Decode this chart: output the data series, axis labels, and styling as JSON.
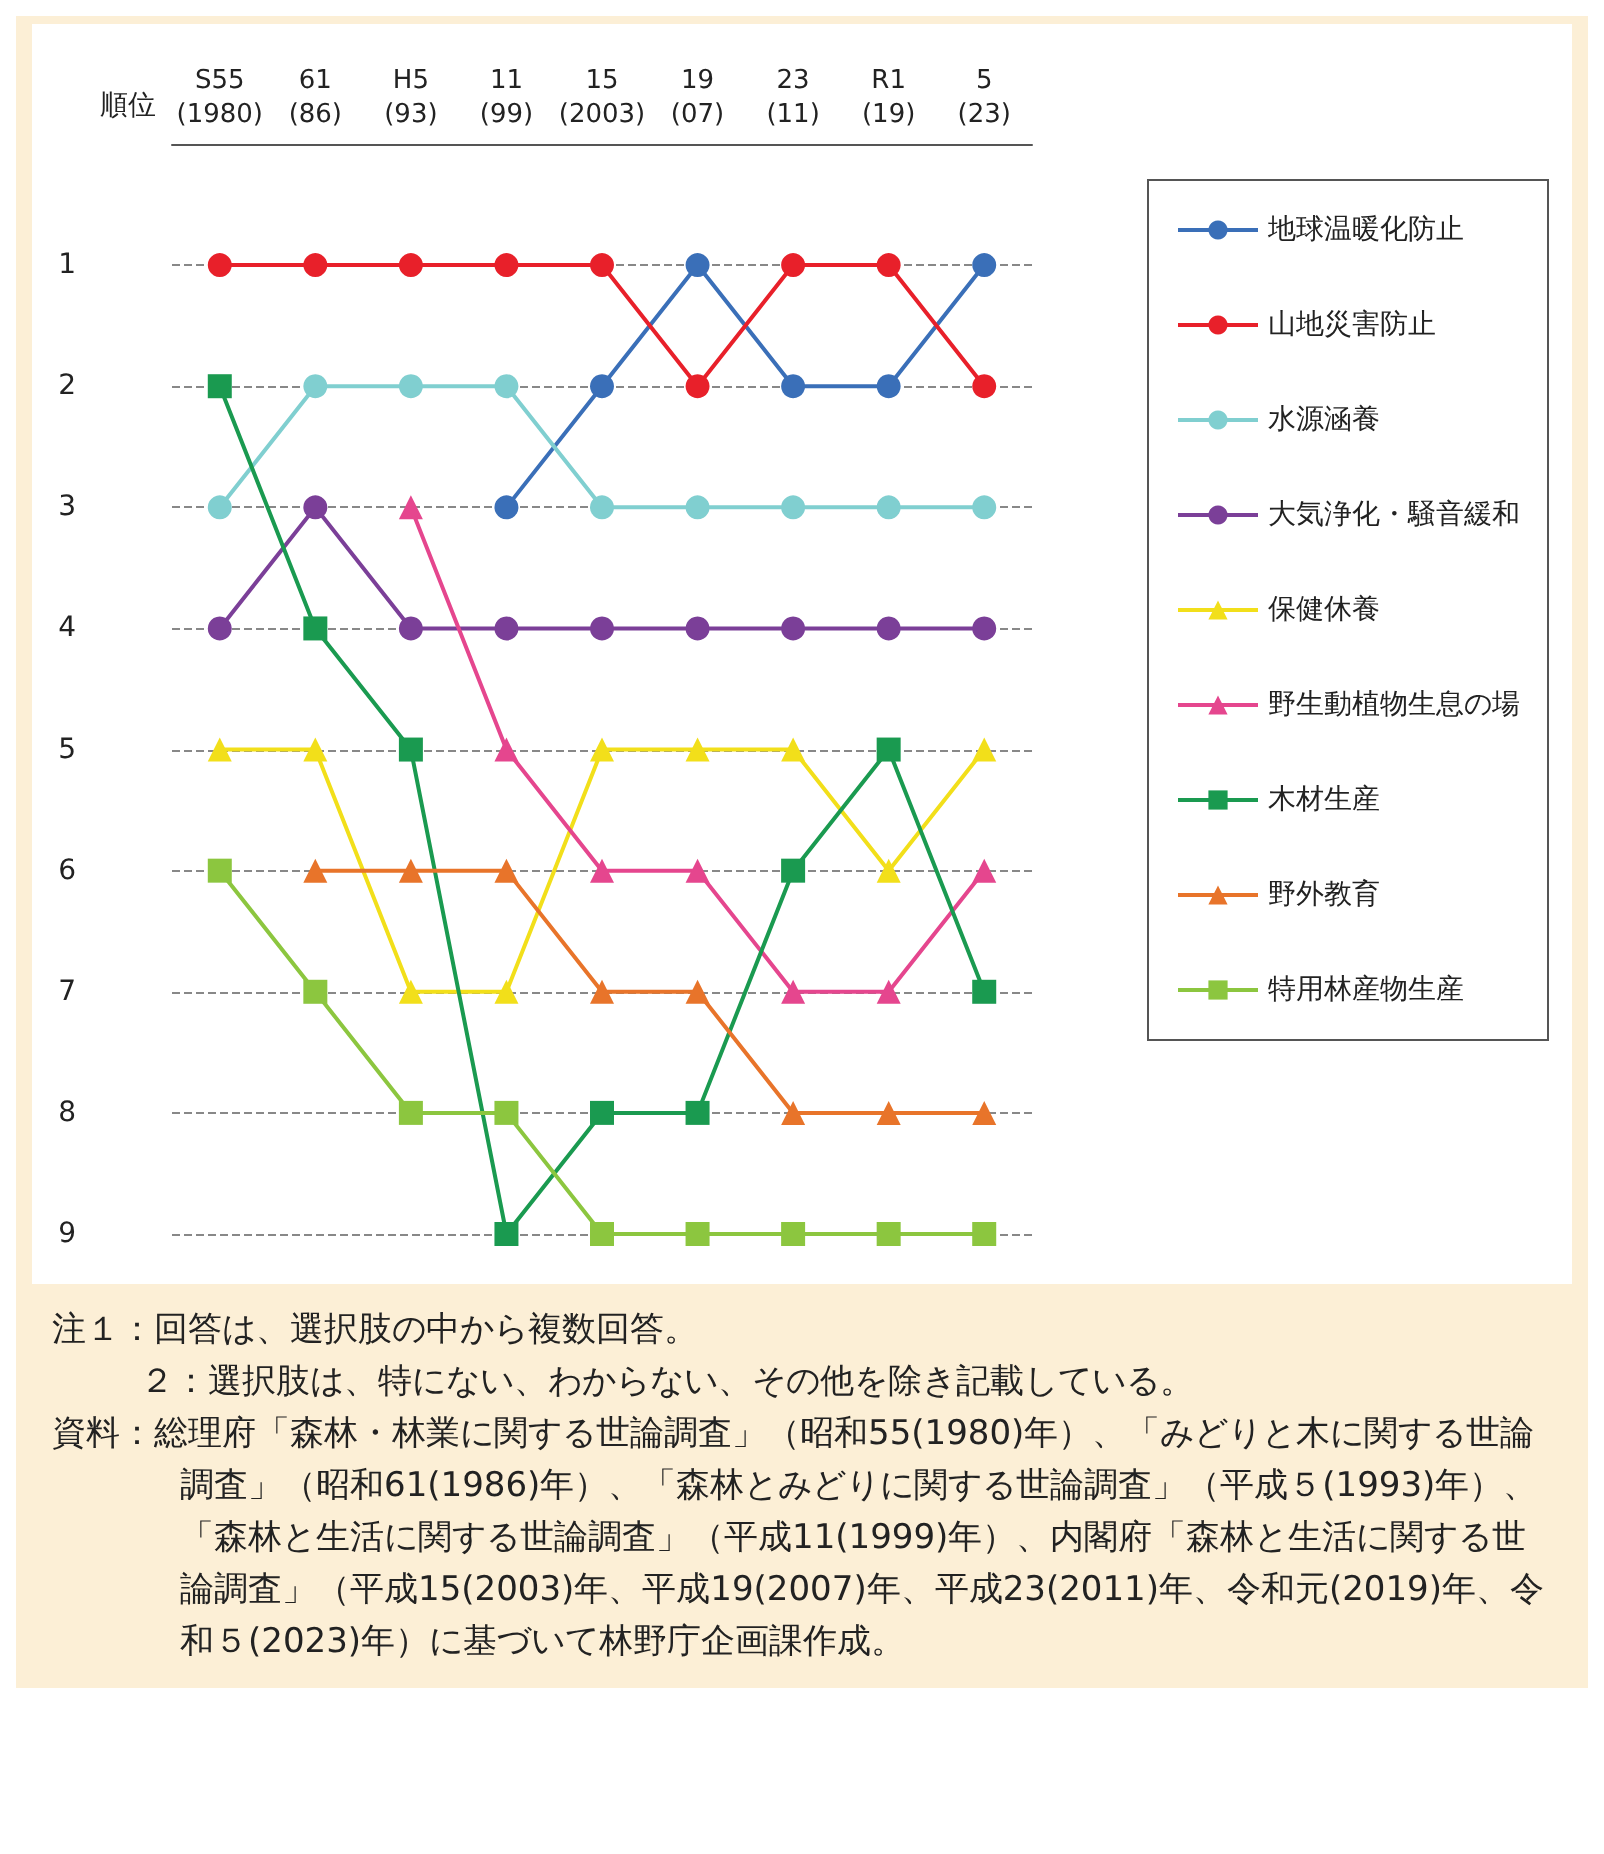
{
  "chart_data": {
    "type": "line",
    "ylabel": "順位",
    "categories": [
      "S55\n(1980)",
      "61\n(86)",
      "H5\n(93)",
      "11\n(99)",
      "15\n(2003)",
      "19\n(07)",
      "23\n(11)",
      "R1\n(19)",
      "5\n(23)"
    ],
    "series": [
      {
        "name": "地球温暖化防止",
        "color": "#3a6fb8",
        "marker": "circle",
        "values": [
          null,
          null,
          null,
          3,
          2,
          1,
          2,
          2,
          1
        ]
      },
      {
        "name": "山地災害防止",
        "color": "#e8202a",
        "marker": "circle",
        "values": [
          1,
          1,
          1,
          1,
          1,
          2,
          1,
          1,
          2
        ]
      },
      {
        "name": "水源涵養",
        "color": "#80cfd0",
        "marker": "circle",
        "values": [
          3,
          2,
          2,
          2,
          3,
          3,
          3,
          3,
          3
        ]
      },
      {
        "name": "大気浄化・騒音緩和",
        "color": "#7b3f98",
        "marker": "circle",
        "values": [
          4,
          3,
          4,
          4,
          4,
          4,
          4,
          4,
          4
        ]
      },
      {
        "name": "保健休養",
        "color": "#f2df1a",
        "marker": "triangle",
        "values": [
          5,
          5,
          7,
          7,
          5,
          5,
          5,
          6,
          5
        ]
      },
      {
        "name": "野生動植物生息の場",
        "color": "#e5468e",
        "marker": "triangle",
        "values": [
          null,
          null,
          3,
          5,
          6,
          6,
          7,
          7,
          6
        ]
      },
      {
        "name": "木材生産",
        "color": "#1a9a50",
        "marker": "square",
        "values": [
          2,
          4,
          5,
          9,
          8,
          8,
          6,
          5,
          7
        ]
      },
      {
        "name": "野外教育",
        "color": "#e8742a",
        "marker": "triangle",
        "values": [
          null,
          6,
          6,
          6,
          7,
          7,
          8,
          8,
          8
        ]
      },
      {
        "name": "特用林産物生産",
        "color": "#8cc63f",
        "marker": "square",
        "values": [
          6,
          7,
          8,
          8,
          9,
          9,
          9,
          9,
          9
        ]
      }
    ],
    "ylim": [
      9,
      0
    ],
    "yticks": [
      1,
      2,
      3,
      4,
      5,
      6,
      7,
      8,
      9
    ],
    "grid": "y",
    "legend": "right",
    "line_style": "solid",
    "annotations": [
      "注１：回答は、選択肢の中から複数回答。",
      "２：選択肢は、特にない、わからない、その他を除き記載している。",
      "資料：総理府「森林・林業に関する世論調査」（昭和55(1980)年）、「みどりと木に関する世論調査」（昭和61(1986)年）、「森林とみどりに関する世論調査」（平成５(1993)年）、「森林と生活に関する世論調査」（平成11(1999)年）、内閣府「森林と生活に関する世論調査」（平成15(2003)年、平成19(2007)年、平成23(2011)年、令和元(2019)年、令和５(2023)年）に基づいて林野庁企画課作成。"
    ]
  }
}
